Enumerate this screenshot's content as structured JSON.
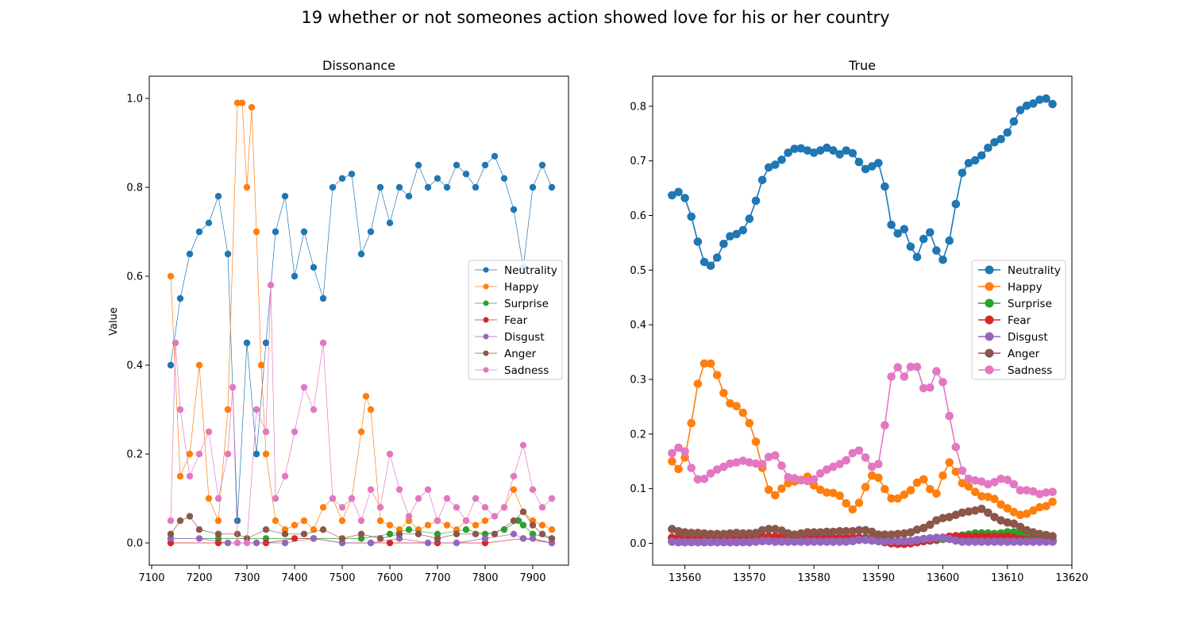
{
  "figure_title": "19 whether or not someones action showed love for his or her country",
  "series_names": [
    "Neutrality",
    "Happy",
    "Surprise",
    "Fear",
    "Disgust",
    "Anger",
    "Sadness"
  ],
  "colors": [
    "#1f77b4",
    "#ff7f0e",
    "#2ca02c",
    "#d62728",
    "#9467bd",
    "#8c564b",
    "#e377c2"
  ],
  "chart_data": [
    {
      "type": "line",
      "title": "Dissonance",
      "xlabel": "",
      "ylabel": "Value",
      "xlim": [
        7095,
        7975
      ],
      "ylim": [
        -0.05,
        1.05
      ],
      "xticks": [
        7100,
        7200,
        7300,
        7400,
        7500,
        7600,
        7700,
        7800,
        7900
      ],
      "yticks": [
        0.0,
        0.2,
        0.4,
        0.6,
        0.8,
        1.0
      ],
      "legend": "center-right",
      "marker_size": "small",
      "series": [
        {
          "name": "Neutrality",
          "x": [
            7140,
            7160,
            7180,
            7200,
            7220,
            7240,
            7260,
            7280,
            7300,
            7320,
            7340,
            7360,
            7380,
            7400,
            7420,
            7440,
            7460,
            7480,
            7500,
            7520,
            7540,
            7560,
            7580,
            7600,
            7620,
            7640,
            7660,
            7680,
            7700,
            7720,
            7740,
            7760,
            7780,
            7800,
            7820,
            7840,
            7860,
            7880,
            7900,
            7920,
            7940
          ],
          "values": [
            0.4,
            0.55,
            0.65,
            0.7,
            0.72,
            0.78,
            0.65,
            0.05,
            0.45,
            0.2,
            0.45,
            0.7,
            0.78,
            0.6,
            0.7,
            0.62,
            0.55,
            0.8,
            0.82,
            0.83,
            0.65,
            0.7,
            0.8,
            0.72,
            0.8,
            0.78,
            0.85,
            0.8,
            0.82,
            0.8,
            0.85,
            0.83,
            0.8,
            0.85,
            0.87,
            0.82,
            0.75,
            0.62,
            0.8,
            0.85,
            0.8
          ]
        },
        {
          "name": "Happy",
          "x": [
            7140,
            7160,
            7180,
            7200,
            7220,
            7240,
            7260,
            7280,
            7290,
            7300,
            7310,
            7320,
            7330,
            7340,
            7360,
            7380,
            7400,
            7420,
            7440,
            7460,
            7480,
            7500,
            7520,
            7540,
            7550,
            7560,
            7580,
            7600,
            7620,
            7640,
            7660,
            7680,
            7700,
            7720,
            7740,
            7760,
            7780,
            7800,
            7820,
            7840,
            7860,
            7880,
            7900,
            7920,
            7940
          ],
          "values": [
            0.6,
            0.15,
            0.2,
            0.4,
            0.1,
            0.05,
            0.3,
            0.99,
            0.99,
            0.8,
            0.98,
            0.7,
            0.4,
            0.2,
            0.05,
            0.03,
            0.04,
            0.05,
            0.03,
            0.08,
            0.1,
            0.05,
            0.1,
            0.25,
            0.33,
            0.3,
            0.05,
            0.04,
            0.03,
            0.05,
            0.03,
            0.04,
            0.05,
            0.04,
            0.03,
            0.05,
            0.04,
            0.05,
            0.06,
            0.08,
            0.12,
            0.07,
            0.05,
            0.04,
            0.03
          ]
        },
        {
          "name": "Surprise",
          "x": [
            7140,
            7240,
            7340,
            7440,
            7540,
            7600,
            7640,
            7700,
            7760,
            7800,
            7840,
            7870,
            7880,
            7900,
            7940
          ],
          "values": [
            0.01,
            0.01,
            0.01,
            0.01,
            0.01,
            0.02,
            0.03,
            0.02,
            0.03,
            0.02,
            0.03,
            0.05,
            0.04,
            0.02,
            0.01
          ]
        },
        {
          "name": "Fear",
          "x": [
            7140,
            7240,
            7340,
            7400,
            7440,
            7500,
            7560,
            7600,
            7700,
            7800,
            7880,
            7940
          ],
          "values": [
            0.0,
            0.0,
            0.0,
            0.01,
            0.01,
            0.0,
            0.0,
            0.0,
            0.0,
            0.0,
            0.01,
            0.0
          ]
        },
        {
          "name": "Disgust",
          "x": [
            7140,
            7200,
            7260,
            7320,
            7380,
            7440,
            7500,
            7560,
            7620,
            7680,
            7740,
            7800,
            7860,
            7880,
            7900,
            7940
          ],
          "values": [
            0.01,
            0.01,
            0.0,
            0.0,
            0.0,
            0.01,
            0.0,
            0.0,
            0.01,
            0.0,
            0.0,
            0.01,
            0.02,
            0.01,
            0.01,
            0.0
          ]
        },
        {
          "name": "Anger",
          "x": [
            7140,
            7160,
            7180,
            7200,
            7240,
            7280,
            7300,
            7340,
            7380,
            7420,
            7460,
            7500,
            7540,
            7580,
            7620,
            7660,
            7700,
            7740,
            7780,
            7820,
            7860,
            7880,
            7900,
            7920,
            7940
          ],
          "values": [
            0.02,
            0.05,
            0.06,
            0.03,
            0.02,
            0.02,
            0.01,
            0.03,
            0.02,
            0.02,
            0.03,
            0.01,
            0.02,
            0.01,
            0.02,
            0.02,
            0.01,
            0.02,
            0.02,
            0.02,
            0.05,
            0.07,
            0.04,
            0.02,
            0.01
          ]
        },
        {
          "name": "Sadness",
          "x": [
            7140,
            7150,
            7160,
            7180,
            7200,
            7220,
            7240,
            7260,
            7270,
            7280,
            7300,
            7320,
            7340,
            7350,
            7360,
            7380,
            7400,
            7420,
            7440,
            7460,
            7480,
            7500,
            7520,
            7540,
            7560,
            7580,
            7600,
            7620,
            7640,
            7660,
            7680,
            7700,
            7720,
            7740,
            7760,
            7780,
            7800,
            7820,
            7840,
            7860,
            7880,
            7900,
            7920,
            7940
          ],
          "values": [
            0.05,
            0.45,
            0.3,
            0.15,
            0.2,
            0.25,
            0.1,
            0.2,
            0.35,
            0.0,
            0.0,
            0.3,
            0.25,
            0.58,
            0.1,
            0.15,
            0.25,
            0.35,
            0.3,
            0.45,
            0.1,
            0.08,
            0.1,
            0.05,
            0.12,
            0.08,
            0.2,
            0.12,
            0.06,
            0.1,
            0.12,
            0.05,
            0.1,
            0.08,
            0.05,
            0.1,
            0.08,
            0.06,
            0.08,
            0.15,
            0.22,
            0.12,
            0.08,
            0.1
          ]
        }
      ]
    },
    {
      "type": "line",
      "title": "True",
      "xlabel": "",
      "ylabel": "",
      "xlim": [
        13555,
        13620
      ],
      "ylim": [
        -0.04,
        0.855
      ],
      "xticks": [
        13560,
        13570,
        13580,
        13590,
        13600,
        13610,
        13620
      ],
      "yticks": [
        0.0,
        0.1,
        0.2,
        0.3,
        0.4,
        0.5,
        0.6,
        0.7,
        0.8
      ],
      "legend": "center-right",
      "marker_size": "large",
      "x": [
        13558,
        13559,
        13560,
        13561,
        13562,
        13563,
        13564,
        13565,
        13566,
        13567,
        13568,
        13569,
        13570,
        13571,
        13572,
        13573,
        13574,
        13575,
        13576,
        13577,
        13578,
        13579,
        13580,
        13581,
        13582,
        13583,
        13584,
        13585,
        13586,
        13587,
        13588,
        13589,
        13590,
        13591,
        13592,
        13593,
        13594,
        13595,
        13596,
        13597,
        13598,
        13599,
        13600,
        13601,
        13602,
        13603,
        13604,
        13605,
        13606,
        13607,
        13608,
        13609,
        13610,
        13611,
        13612,
        13613,
        13614,
        13615,
        13616,
        13617
      ],
      "series": [
        {
          "name": "Neutrality",
          "values": [
            0.637,
            0.643,
            0.632,
            0.598,
            0.552,
            0.515,
            0.508,
            0.523,
            0.548,
            0.562,
            0.566,
            0.573,
            0.594,
            0.627,
            0.665,
            0.688,
            0.693,
            0.702,
            0.715,
            0.722,
            0.723,
            0.719,
            0.715,
            0.719,
            0.724,
            0.719,
            0.712,
            0.719,
            0.714,
            0.698,
            0.685,
            0.69,
            0.696,
            0.653,
            0.583,
            0.567,
            0.575,
            0.543,
            0.524,
            0.557,
            0.569,
            0.536,
            0.519,
            0.554,
            0.621,
            0.678,
            0.696,
            0.701,
            0.71,
            0.724,
            0.734,
            0.74,
            0.752,
            0.772,
            0.793,
            0.801,
            0.805,
            0.812,
            0.814,
            0.804
          ]
        },
        {
          "name": "Happy",
          "values": [
            0.15,
            0.136,
            0.157,
            0.22,
            0.292,
            0.329,
            0.329,
            0.308,
            0.275,
            0.256,
            0.251,
            0.239,
            0.22,
            0.186,
            0.138,
            0.098,
            0.088,
            0.1,
            0.11,
            0.113,
            0.116,
            0.122,
            0.106,
            0.098,
            0.093,
            0.092,
            0.087,
            0.073,
            0.062,
            0.074,
            0.103,
            0.124,
            0.12,
            0.099,
            0.082,
            0.082,
            0.089,
            0.097,
            0.111,
            0.117,
            0.099,
            0.091,
            0.124,
            0.148,
            0.131,
            0.11,
            0.104,
            0.094,
            0.086,
            0.085,
            0.081,
            0.071,
            0.064,
            0.057,
            0.052,
            0.054,
            0.06,
            0.066,
            0.068,
            0.076
          ]
        },
        {
          "name": "Surprise",
          "values": [
            0.01,
            0.01,
            0.01,
            0.01,
            0.008,
            0.008,
            0.008,
            0.008,
            0.008,
            0.008,
            0.008,
            0.008,
            0.008,
            0.01,
            0.012,
            0.012,
            0.012,
            0.01,
            0.01,
            0.01,
            0.01,
            0.01,
            0.01,
            0.01,
            0.01,
            0.01,
            0.01,
            0.01,
            0.01,
            0.01,
            0.01,
            0.01,
            0.008,
            0.005,
            0.004,
            0.004,
            0.004,
            0.004,
            0.004,
            0.004,
            0.005,
            0.006,
            0.008,
            0.01,
            0.012,
            0.014,
            0.016,
            0.018,
            0.018,
            0.018,
            0.017,
            0.018,
            0.02,
            0.02,
            0.018,
            0.012,
            0.01,
            0.008,
            0.006,
            0.005
          ]
        },
        {
          "name": "Fear",
          "values": [
            0.01,
            0.01,
            0.01,
            0.01,
            0.01,
            0.01,
            0.01,
            0.01,
            0.01,
            0.01,
            0.01,
            0.01,
            0.01,
            0.01,
            0.01,
            0.012,
            0.012,
            0.012,
            0.01,
            0.01,
            0.01,
            0.01,
            0.01,
            0.01,
            0.01,
            0.01,
            0.01,
            0.01,
            0.01,
            0.01,
            0.008,
            0.006,
            0.004,
            0.002,
            0.0,
            -0.001,
            -0.001,
            0.0,
            0.002,
            0.004,
            0.006,
            0.008,
            0.01,
            0.012,
            0.013,
            0.012,
            0.012,
            0.012,
            0.012,
            0.012,
            0.012,
            0.012,
            0.012,
            0.01,
            0.008,
            0.006,
            0.005,
            0.005,
            0.005,
            0.005
          ]
        },
        {
          "name": "Disgust",
          "values": [
            0.003,
            0.002,
            0.002,
            0.002,
            0.002,
            0.002,
            0.002,
            0.002,
            0.002,
            0.002,
            0.002,
            0.002,
            0.002,
            0.003,
            0.004,
            0.004,
            0.003,
            0.003,
            0.003,
            0.003,
            0.003,
            0.003,
            0.003,
            0.003,
            0.003,
            0.003,
            0.003,
            0.003,
            0.004,
            0.006,
            0.006,
            0.005,
            0.004,
            0.004,
            0.004,
            0.004,
            0.004,
            0.004,
            0.006,
            0.008,
            0.009,
            0.01,
            0.01,
            0.008,
            0.005,
            0.003,
            0.003,
            0.003,
            0.003,
            0.003,
            0.003,
            0.003,
            0.003,
            0.003,
            0.003,
            0.003,
            0.003,
            0.003,
            0.003,
            0.003
          ]
        },
        {
          "name": "Anger",
          "values": [
            0.026,
            0.022,
            0.02,
            0.019,
            0.019,
            0.018,
            0.017,
            0.017,
            0.017,
            0.018,
            0.019,
            0.018,
            0.018,
            0.019,
            0.024,
            0.026,
            0.026,
            0.023,
            0.018,
            0.016,
            0.018,
            0.02,
            0.02,
            0.02,
            0.021,
            0.021,
            0.022,
            0.022,
            0.022,
            0.024,
            0.024,
            0.021,
            0.016,
            0.016,
            0.016,
            0.017,
            0.018,
            0.02,
            0.025,
            0.028,
            0.034,
            0.042,
            0.046,
            0.048,
            0.052,
            0.056,
            0.058,
            0.06,
            0.063,
            0.056,
            0.048,
            0.042,
            0.038,
            0.036,
            0.03,
            0.024,
            0.02,
            0.017,
            0.015,
            0.013
          ]
        },
        {
          "name": "Sadness",
          "values": [
            0.165,
            0.175,
            0.168,
            0.138,
            0.117,
            0.118,
            0.128,
            0.135,
            0.14,
            0.146,
            0.148,
            0.151,
            0.148,
            0.146,
            0.145,
            0.158,
            0.161,
            0.142,
            0.121,
            0.119,
            0.115,
            0.114,
            0.117,
            0.128,
            0.135,
            0.14,
            0.145,
            0.152,
            0.165,
            0.17,
            0.157,
            0.14,
            0.145,
            0.216,
            0.305,
            0.322,
            0.305,
            0.323,
            0.323,
            0.284,
            0.285,
            0.315,
            0.295,
            0.233,
            0.176,
            0.133,
            0.118,
            0.115,
            0.113,
            0.108,
            0.112,
            0.118,
            0.116,
            0.108,
            0.097,
            0.097,
            0.095,
            0.09,
            0.093,
            0.094
          ]
        }
      ]
    }
  ]
}
